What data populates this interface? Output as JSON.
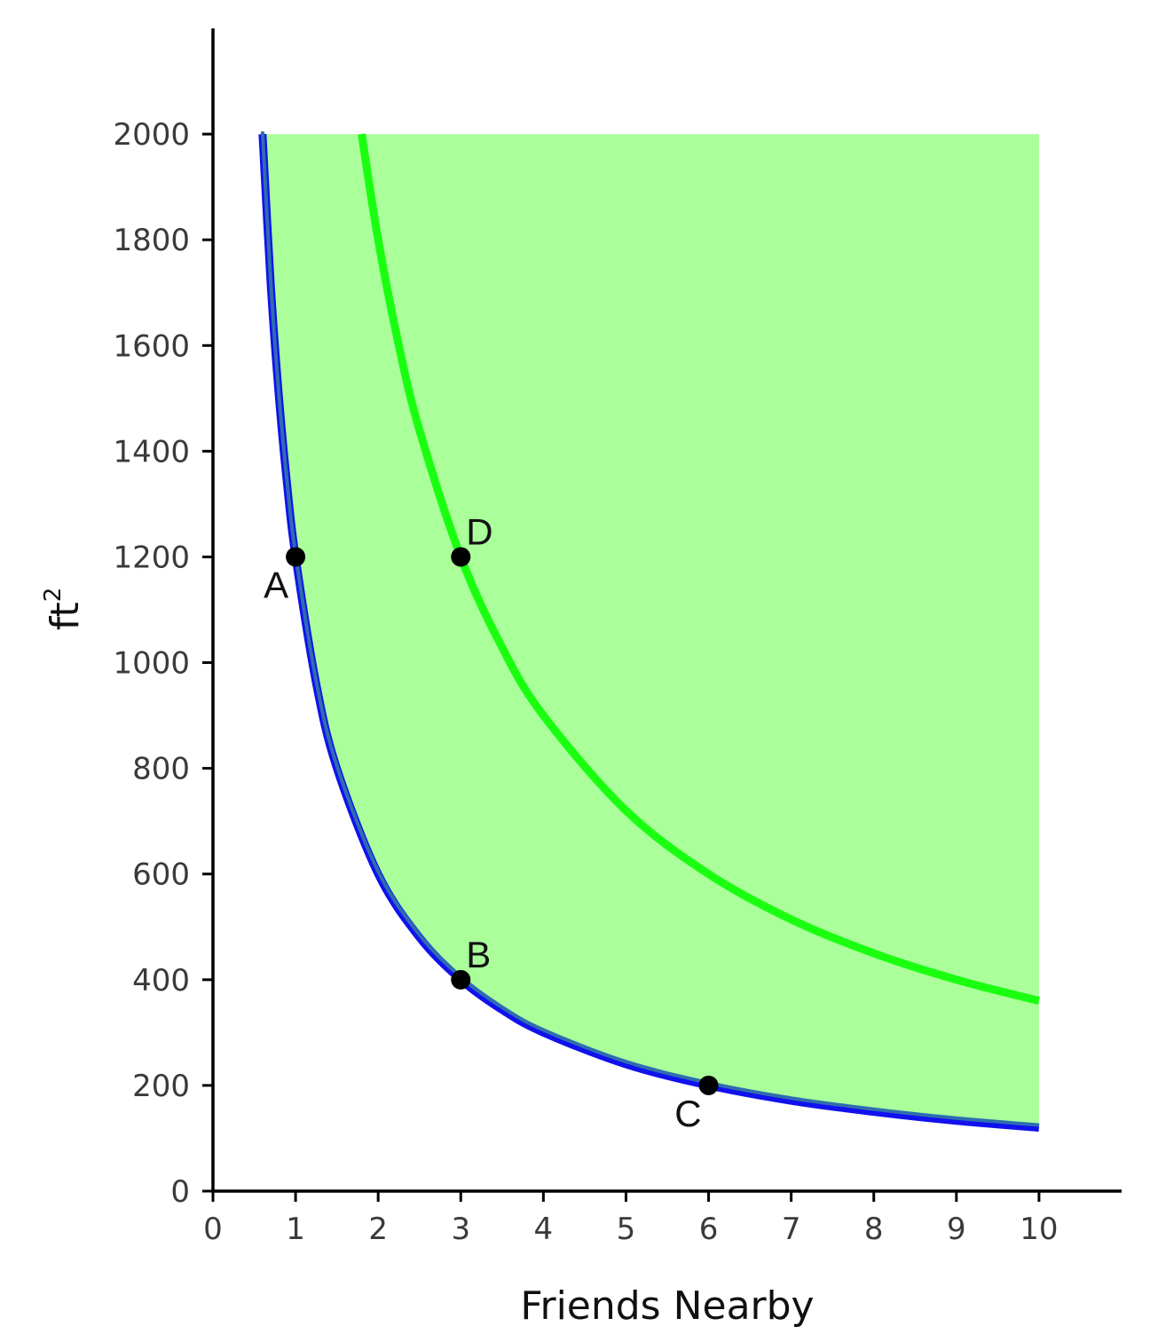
{
  "chart_data": {
    "type": "line",
    "xlabel": "Friends Nearby",
    "ylabel": "ft",
    "ylabel_superscript": "2",
    "xlim": [
      0,
      11
    ],
    "ylim": [
      0,
      2200
    ],
    "x_ticks": [
      0,
      1,
      2,
      3,
      4,
      5,
      6,
      7,
      8,
      9,
      10
    ],
    "y_ticks": [
      0,
      200,
      400,
      600,
      800,
      1000,
      1200,
      1400,
      1600,
      1800,
      2000
    ],
    "shaded_region": {
      "color": "#aaff9b",
      "lower_curve": "y = 1200 / x",
      "upper_y": 2000,
      "x_range": [
        0.6,
        10
      ]
    },
    "series": [
      {
        "color": "#1111ee",
        "outline_color": "#2e6db0",
        "x": [
          0.6,
          0.7,
          0.8,
          0.9,
          1,
          1.25,
          1.5,
          2,
          2.5,
          3,
          3.5,
          4,
          5,
          6,
          7,
          8,
          9,
          10
        ],
        "y": [
          2000,
          1714,
          1500,
          1333,
          1200,
          960,
          800,
          600,
          480,
          400,
          343,
          300,
          240,
          200,
          171,
          150,
          133,
          120
        ]
      },
      {
        "color": "#1aff10",
        "x": [
          1.8,
          2,
          2.25,
          2.5,
          3,
          3.5,
          4,
          5,
          6,
          7,
          8,
          9,
          10
        ],
        "y": [
          2000,
          1800,
          1600,
          1440,
          1200,
          1029,
          900,
          720,
          600,
          514,
          450,
          400,
          360
        ]
      }
    ],
    "points": [
      {
        "label": "A",
        "x": 1,
        "y": 1200,
        "label_pos": "below-left"
      },
      {
        "label": "D",
        "x": 3,
        "y": 1200,
        "label_pos": "above-right"
      },
      {
        "label": "B",
        "x": 3,
        "y": 400,
        "label_pos": "above-right"
      },
      {
        "label": "C",
        "x": 6,
        "y": 200,
        "label_pos": "below-left"
      }
    ]
  }
}
